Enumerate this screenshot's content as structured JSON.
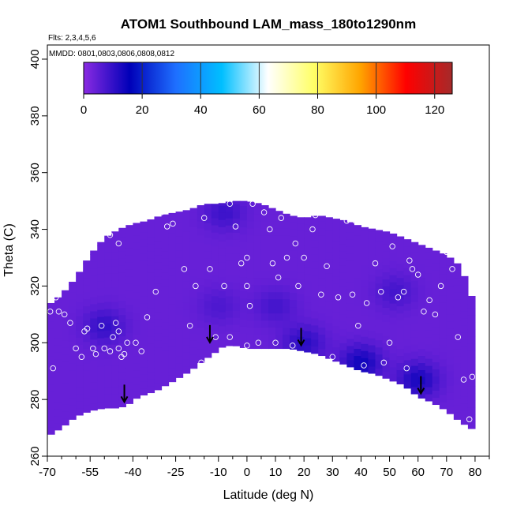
{
  "chart_data": {
    "type": "heatmap",
    "title": "ATOM1 Southbound LAM_mass_180to1290nm",
    "subtitle_flights": "Flts: 2,3,4,5,6",
    "subtitle_dates": "MMDD: 0801,0803,0806,0808,0812",
    "xlabel": "Latitude (deg N)",
    "ylabel": "Theta (C)",
    "xlim": [
      -70,
      85
    ],
    "ylim": [
      260,
      405
    ],
    "x_major_ticks": [
      -70,
      -55,
      -40,
      -25,
      -10,
      0,
      10,
      20,
      30,
      40,
      50,
      60,
      70,
      80
    ],
    "x_minor_ticks": [
      -65,
      -60,
      -50,
      -45,
      -35,
      -30,
      -20,
      -15,
      -5,
      5,
      15,
      25,
      35,
      45,
      55,
      65,
      75,
      85
    ],
    "x_tick_labels": [
      "-70",
      "-55",
      "-40",
      "-25",
      "-10",
      "0",
      "10",
      "20",
      "30",
      "40",
      "50",
      "60",
      "70",
      "80"
    ],
    "y_ticks": [
      260,
      280,
      300,
      320,
      340,
      360,
      380,
      400
    ],
    "y_tick_labels": [
      "260",
      "280",
      "300",
      "320",
      "340",
      "360",
      "380",
      "400"
    ],
    "colorbar": {
      "range": [
        0,
        126
      ],
      "ticks": [
        0,
        20,
        40,
        60,
        80,
        100,
        120
      ],
      "tick_labels": [
        "0",
        "20",
        "40",
        "60",
        "80",
        "100",
        "120"
      ],
      "colors": [
        "#8a2be2",
        "#0000b8",
        "#1e6fff",
        "#00bfff",
        "#ffffff",
        "#ffff66",
        "#ffa500",
        "#ff0000",
        "#a52a2a"
      ]
    },
    "field_value_typical": 4,
    "upper_boundary": [
      [
        -70,
        313
      ],
      [
        -65,
        317
      ],
      [
        -60,
        323
      ],
      [
        -55,
        331
      ],
      [
        -50,
        337
      ],
      [
        -45,
        340
      ],
      [
        -40,
        342
      ],
      [
        -35,
        343
      ],
      [
        -30,
        345
      ],
      [
        -25,
        346
      ],
      [
        -20,
        347
      ],
      [
        -15,
        349
      ],
      [
        -10,
        349
      ],
      [
        -5,
        350
      ],
      [
        0,
        350
      ],
      [
        5,
        349
      ],
      [
        10,
        347
      ],
      [
        15,
        345
      ],
      [
        20,
        344
      ],
      [
        25,
        345
      ],
      [
        30,
        344
      ],
      [
        35,
        343
      ],
      [
        40,
        341
      ],
      [
        45,
        340
      ],
      [
        50,
        339
      ],
      [
        55,
        337
      ],
      [
        60,
        335
      ],
      [
        65,
        333
      ],
      [
        70,
        331
      ],
      [
        75,
        327
      ],
      [
        80,
        313
      ]
    ],
    "lower_boundary": [
      [
        -70,
        267
      ],
      [
        -65,
        270
      ],
      [
        -60,
        274
      ],
      [
        -55,
        276
      ],
      [
        -50,
        277
      ],
      [
        -45,
        277
      ],
      [
        -42,
        278
      ],
      [
        -38,
        281
      ],
      [
        -32,
        283
      ],
      [
        -25,
        287
      ],
      [
        -20,
        290
      ],
      [
        -15,
        294
      ],
      [
        -12,
        296
      ],
      [
        -8,
        299
      ],
      [
        -4,
        299
      ],
      [
        0,
        298
      ],
      [
        5,
        298
      ],
      [
        10,
        298
      ],
      [
        15,
        298
      ],
      [
        20,
        297
      ],
      [
        25,
        296
      ],
      [
        30,
        294
      ],
      [
        35,
        292
      ],
      [
        40,
        290
      ],
      [
        45,
        289
      ],
      [
        50,
        287
      ],
      [
        55,
        285
      ],
      [
        60,
        281
      ],
      [
        65,
        279
      ],
      [
        70,
        276
      ],
      [
        75,
        272
      ],
      [
        80,
        269
      ]
    ],
    "dark_regions": [
      {
        "lat": 40,
        "theta": 293,
        "value": 14
      },
      {
        "lat": 20,
        "theta": 300,
        "value": 11
      },
      {
        "lat": 60,
        "theta": 287,
        "value": 13
      },
      {
        "lat": -50,
        "theta": 306,
        "value": 10
      },
      {
        "lat": -8,
        "theta": 346,
        "value": 9
      },
      {
        "lat": 10,
        "theta": 313,
        "value": 8
      },
      {
        "lat": -10,
        "theta": 313,
        "value": 7
      },
      {
        "lat": 52,
        "theta": 318,
        "value": 8
      }
    ],
    "arrows": [
      {
        "lat": -43,
        "theta": 283
      },
      {
        "lat": -13,
        "theta": 304
      },
      {
        "lat": 19,
        "theta": 303
      },
      {
        "lat": 61,
        "theta": 286
      }
    ],
    "sample_points": [
      [
        -69,
        311
      ],
      [
        -68,
        291
      ],
      [
        -67,
        316
      ],
      [
        -66,
        311
      ],
      [
        -64,
        310
      ],
      [
        -62,
        307
      ],
      [
        -60,
        298
      ],
      [
        -58,
        295
      ],
      [
        -57,
        304
      ],
      [
        -56,
        305
      ],
      [
        -54,
        298
      ],
      [
        -53,
        296
      ],
      [
        -51,
        306
      ],
      [
        -50,
        298
      ],
      [
        -48,
        297
      ],
      [
        -47,
        302
      ],
      [
        -46,
        307
      ],
      [
        -45,
        304
      ],
      [
        -45,
        298
      ],
      [
        -44,
        295
      ],
      [
        -43,
        296
      ],
      [
        -42,
        300
      ],
      [
        -39,
        300
      ],
      [
        -37,
        297
      ],
      [
        -35,
        309
      ],
      [
        -32,
        318
      ],
      [
        -28,
        341
      ],
      [
        -26,
        342
      ],
      [
        -22,
        326
      ],
      [
        -20,
        306
      ],
      [
        -18,
        320
      ],
      [
        -16,
        293
      ],
      [
        -13,
        326
      ],
      [
        -11,
        302
      ],
      [
        -8,
        320
      ],
      [
        -6,
        302
      ],
      [
        -4,
        341
      ],
      [
        -2,
        328
      ],
      [
        0,
        330
      ],
      [
        0,
        320
      ],
      [
        0,
        299
      ],
      [
        1,
        313
      ],
      [
        4,
        300
      ],
      [
        6,
        346
      ],
      [
        8,
        340
      ],
      [
        9,
        328
      ],
      [
        10,
        300
      ],
      [
        11,
        323
      ],
      [
        12,
        344
      ],
      [
        14,
        330
      ],
      [
        16,
        299
      ],
      [
        17,
        335
      ],
      [
        18,
        320
      ],
      [
        20,
        330
      ],
      [
        23,
        340
      ],
      [
        26,
        317
      ],
      [
        28,
        327
      ],
      [
        30,
        295
      ],
      [
        32,
        316
      ],
      [
        35,
        343
      ],
      [
        37,
        317
      ],
      [
        39,
        306
      ],
      [
        41,
        292
      ],
      [
        42,
        314
      ],
      [
        45,
        328
      ],
      [
        47,
        318
      ],
      [
        48,
        293
      ],
      [
        50,
        300
      ],
      [
        51,
        334
      ],
      [
        53,
        316
      ],
      [
        55,
        318
      ],
      [
        56,
        291
      ],
      [
        57,
        329
      ],
      [
        58,
        326
      ],
      [
        60,
        324
      ],
      [
        62,
        311
      ],
      [
        63,
        336
      ],
      [
        64,
        315
      ],
      [
        66,
        310
      ],
      [
        68,
        320
      ],
      [
        70,
        332
      ],
      [
        72,
        326
      ],
      [
        74,
        302
      ],
      [
        76,
        287
      ],
      [
        78,
        273
      ],
      [
        79,
        288
      ],
      [
        -48,
        338
      ],
      [
        -45,
        335
      ],
      [
        -38,
        344
      ],
      [
        -30,
        346
      ],
      [
        -15,
        344
      ],
      [
        -6,
        349
      ],
      [
        2,
        349
      ],
      [
        24,
        345
      ],
      [
        38,
        343
      ]
    ]
  }
}
